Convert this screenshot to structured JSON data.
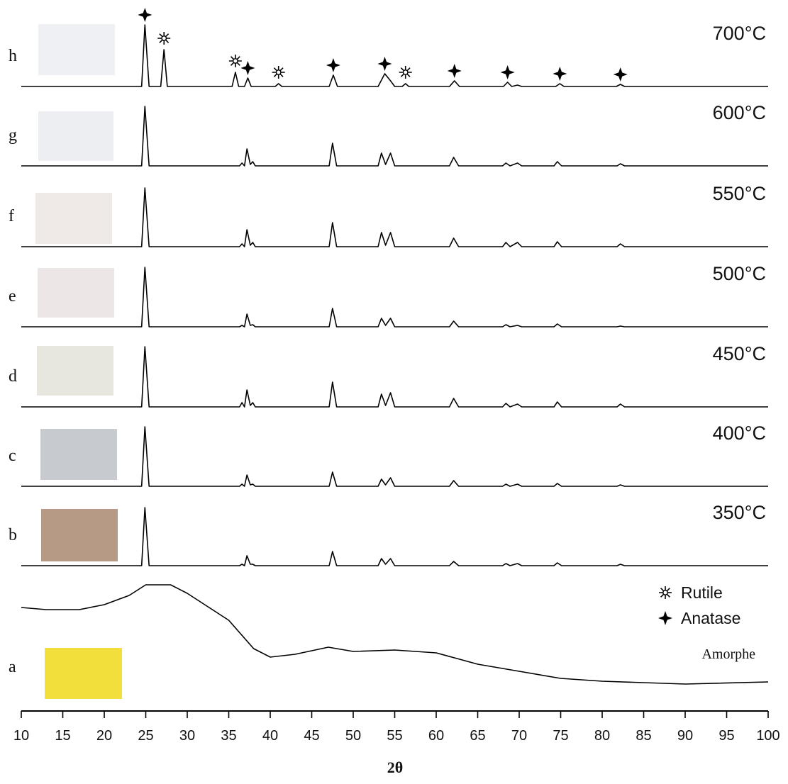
{
  "chart_data": [
    {
      "type": "line",
      "label": "h",
      "temperature": "700°C",
      "xlim": [
        10,
        100
      ],
      "ylim": [
        0,
        110
      ],
      "color": "#000000",
      "x": [
        10,
        24.5,
        24.9,
        25.4,
        26.8,
        27.2,
        27.6,
        35.4,
        35.8,
        36.2,
        36.9,
        37.3,
        37.7,
        40.6,
        41.0,
        41.4,
        47.1,
        47.6,
        48.1,
        53.0,
        53.8,
        54.5,
        55.0,
        55.9,
        56.3,
        56.7,
        61.6,
        62.2,
        62.8,
        68.1,
        68.6,
        69.1,
        69.8,
        70.3,
        74.4,
        74.9,
        75.4,
        81.7,
        82.2,
        82.7,
        100
      ],
      "values": [
        2,
        2,
        89,
        2,
        2,
        54,
        2,
        2,
        22,
        2,
        2,
        14,
        2,
        2,
        6,
        2,
        2,
        18,
        2,
        2,
        20,
        10,
        2,
        2,
        6,
        2,
        2,
        10,
        2,
        2,
        8,
        2,
        4,
        2,
        2,
        6,
        2,
        2,
        5,
        2,
        2
      ],
      "rutile_peaks": [
        27.2,
        35.8,
        41.0,
        56.3
      ],
      "anatase_peaks": [
        24.9,
        37.3,
        47.6,
        53.8,
        62.2,
        68.6,
        74.9,
        82.2
      ]
    },
    {
      "type": "line",
      "label": "g",
      "temperature": "600°C",
      "xlim": [
        10,
        100
      ],
      "ylim": [
        0,
        110
      ],
      "color": "#000000",
      "x": [
        10,
        24.5,
        24.9,
        25.4,
        36.3,
        36.6,
        36.9,
        37.2,
        37.6,
        37.9,
        38.2,
        47.1,
        47.5,
        48.0,
        53.0,
        53.4,
        53.9,
        54.5,
        55.0,
        61.6,
        62.1,
        62.7,
        68.0,
        68.4,
        68.9,
        69.8,
        70.3,
        74.2,
        74.6,
        75.1,
        81.8,
        82.2,
        82.7,
        100
      ],
      "values": [
        2,
        2,
        86,
        2,
        2,
        6,
        2,
        26,
        4,
        8,
        2,
        2,
        34,
        2,
        2,
        20,
        4,
        20,
        2,
        2,
        14,
        2,
        2,
        6,
        2,
        6,
        2,
        2,
        8,
        2,
        2,
        5,
        2,
        2
      ]
    },
    {
      "type": "line",
      "label": "f",
      "temperature": "550°C",
      "xlim": [
        10,
        100
      ],
      "ylim": [
        0,
        110
      ],
      "color": "#000000",
      "x": [
        10,
        24.5,
        24.9,
        25.4,
        36.3,
        36.6,
        36.9,
        37.2,
        37.6,
        37.9,
        38.2,
        47.1,
        47.5,
        48.0,
        53.0,
        53.4,
        53.9,
        54.5,
        55.0,
        61.6,
        62.1,
        62.7,
        68.0,
        68.4,
        68.9,
        69.8,
        70.3,
        74.2,
        74.6,
        75.1,
        81.8,
        82.2,
        82.7,
        100
      ],
      "values": [
        2,
        2,
        85,
        2,
        2,
        6,
        2,
        26,
        4,
        8,
        2,
        2,
        36,
        2,
        2,
        22,
        4,
        22,
        2,
        2,
        14,
        2,
        2,
        8,
        2,
        8,
        2,
        2,
        9,
        2,
        2,
        6,
        2,
        2
      ]
    },
    {
      "type": "line",
      "label": "e",
      "temperature": "500°C",
      "xlim": [
        10,
        100
      ],
      "ylim": [
        0,
        110
      ],
      "color": "#000000",
      "x": [
        10,
        24.5,
        24.9,
        25.4,
        36.3,
        36.6,
        36.9,
        37.2,
        37.6,
        37.9,
        38.2,
        47.1,
        47.5,
        48.0,
        53.0,
        53.4,
        53.9,
        54.5,
        55.0,
        61.6,
        62.1,
        62.7,
        68.0,
        68.4,
        68.9,
        69.8,
        70.3,
        74.2,
        74.6,
        75.1,
        81.8,
        82.2,
        82.7,
        100
      ],
      "values": [
        2,
        2,
        86,
        2,
        2,
        4,
        2,
        20,
        4,
        5,
        2,
        2,
        28,
        2,
        2,
        14,
        4,
        14,
        2,
        2,
        10,
        2,
        2,
        5,
        2,
        4,
        2,
        2,
        6,
        2,
        2,
        3,
        2,
        2
      ]
    },
    {
      "type": "line",
      "label": "d",
      "temperature": "450°C",
      "xlim": [
        10,
        100
      ],
      "ylim": [
        0,
        110
      ],
      "color": "#000000",
      "x": [
        10,
        24.5,
        24.9,
        25.4,
        36.3,
        36.6,
        36.9,
        37.2,
        37.6,
        37.9,
        38.2,
        47.1,
        47.5,
        48.0,
        53.0,
        53.4,
        53.9,
        54.5,
        55.0,
        61.6,
        62.1,
        62.7,
        68.0,
        68.4,
        68.9,
        69.8,
        70.3,
        74.2,
        74.6,
        75.1,
        81.8,
        82.2,
        82.7,
        100
      ],
      "values": [
        2,
        2,
        87,
        2,
        2,
        8,
        2,
        26,
        4,
        8,
        2,
        2,
        37,
        2,
        2,
        20,
        4,
        22,
        2,
        2,
        14,
        2,
        2,
        7,
        2,
        6,
        2,
        2,
        9,
        2,
        2,
        6,
        2,
        2
      ]
    },
    {
      "type": "line",
      "label": "c",
      "temperature": "400°C",
      "xlim": [
        10,
        100
      ],
      "ylim": [
        0,
        110
      ],
      "color": "#000000",
      "x": [
        10,
        24.5,
        24.9,
        25.4,
        36.3,
        36.6,
        36.9,
        37.2,
        37.6,
        37.9,
        38.2,
        47.1,
        47.5,
        48.0,
        53.0,
        53.4,
        53.9,
        54.5,
        55.0,
        61.6,
        62.1,
        62.7,
        68.0,
        68.4,
        68.9,
        69.8,
        70.3,
        74.2,
        74.6,
        75.1,
        81.8,
        82.2,
        82.7,
        100
      ],
      "values": [
        2,
        2,
        86,
        2,
        2,
        5,
        2,
        18,
        4,
        5,
        2,
        2,
        22,
        2,
        2,
        12,
        4,
        14,
        2,
        2,
        10,
        2,
        2,
        5,
        2,
        5,
        2,
        2,
        6,
        2,
        2,
        4,
        2,
        2
      ]
    },
    {
      "type": "line",
      "label": "b",
      "temperature": "350°C",
      "xlim": [
        10,
        100
      ],
      "ylim": [
        0,
        110
      ],
      "color": "#000000",
      "x": [
        10,
        24.5,
        24.9,
        25.4,
        36.3,
        36.6,
        36.9,
        37.2,
        37.6,
        37.9,
        38.2,
        47.1,
        47.5,
        48.0,
        53.0,
        53.4,
        53.9,
        54.5,
        55.0,
        61.6,
        62.1,
        62.7,
        68.0,
        68.4,
        68.9,
        69.8,
        70.3,
        74.2,
        74.6,
        75.1,
        81.8,
        82.2,
        82.7,
        100
      ],
      "values": [
        2,
        2,
        84,
        2,
        2,
        4,
        2,
        16,
        4,
        4,
        2,
        2,
        22,
        2,
        2,
        12,
        4,
        12,
        2,
        2,
        8,
        2,
        2,
        5,
        2,
        5,
        2,
        2,
        6,
        2,
        2,
        4,
        2,
        2
      ]
    },
    {
      "type": "line",
      "label": "a",
      "temperature": "Amorphe",
      "xlim": [
        10,
        100
      ],
      "ylim": [
        0,
        170
      ],
      "color": "#000000",
      "x": [
        10,
        13,
        17,
        20,
        23,
        25,
        28,
        30,
        35,
        38,
        40,
        43,
        47,
        50,
        55,
        60,
        65,
        70,
        75,
        80,
        90,
        100
      ],
      "values": [
        128,
        125,
        125,
        132,
        145,
        160,
        160,
        148,
        110,
        70,
        58,
        62,
        72,
        66,
        68,
        64,
        48,
        38,
        28,
        24,
        20,
        23
      ],
      "xticks": [
        10,
        15,
        20,
        25,
        30,
        35,
        40,
        45,
        50,
        55,
        60,
        65,
        70,
        75,
        80,
        85,
        90,
        95,
        100
      ],
      "xlabel": "2θ",
      "legend": [
        {
          "name": "Rutile",
          "symbol": "asterisk"
        },
        {
          "name": "Anatase",
          "symbol": "star"
        }
      ]
    }
  ]
}
